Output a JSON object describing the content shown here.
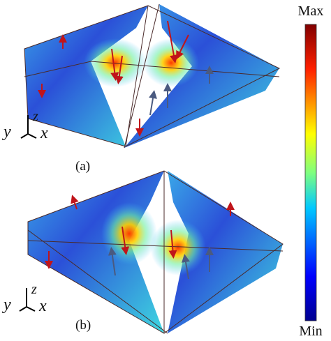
{
  "colorbar": {
    "max_label": "Max",
    "min_label": "Min"
  },
  "panels": [
    {
      "label": "(a)",
      "axes": {
        "y": "y",
        "z": "z",
        "x": "x"
      }
    },
    {
      "label": "(b)",
      "axes": {
        "y": "y",
        "z": "z",
        "x": "x"
      }
    }
  ]
}
